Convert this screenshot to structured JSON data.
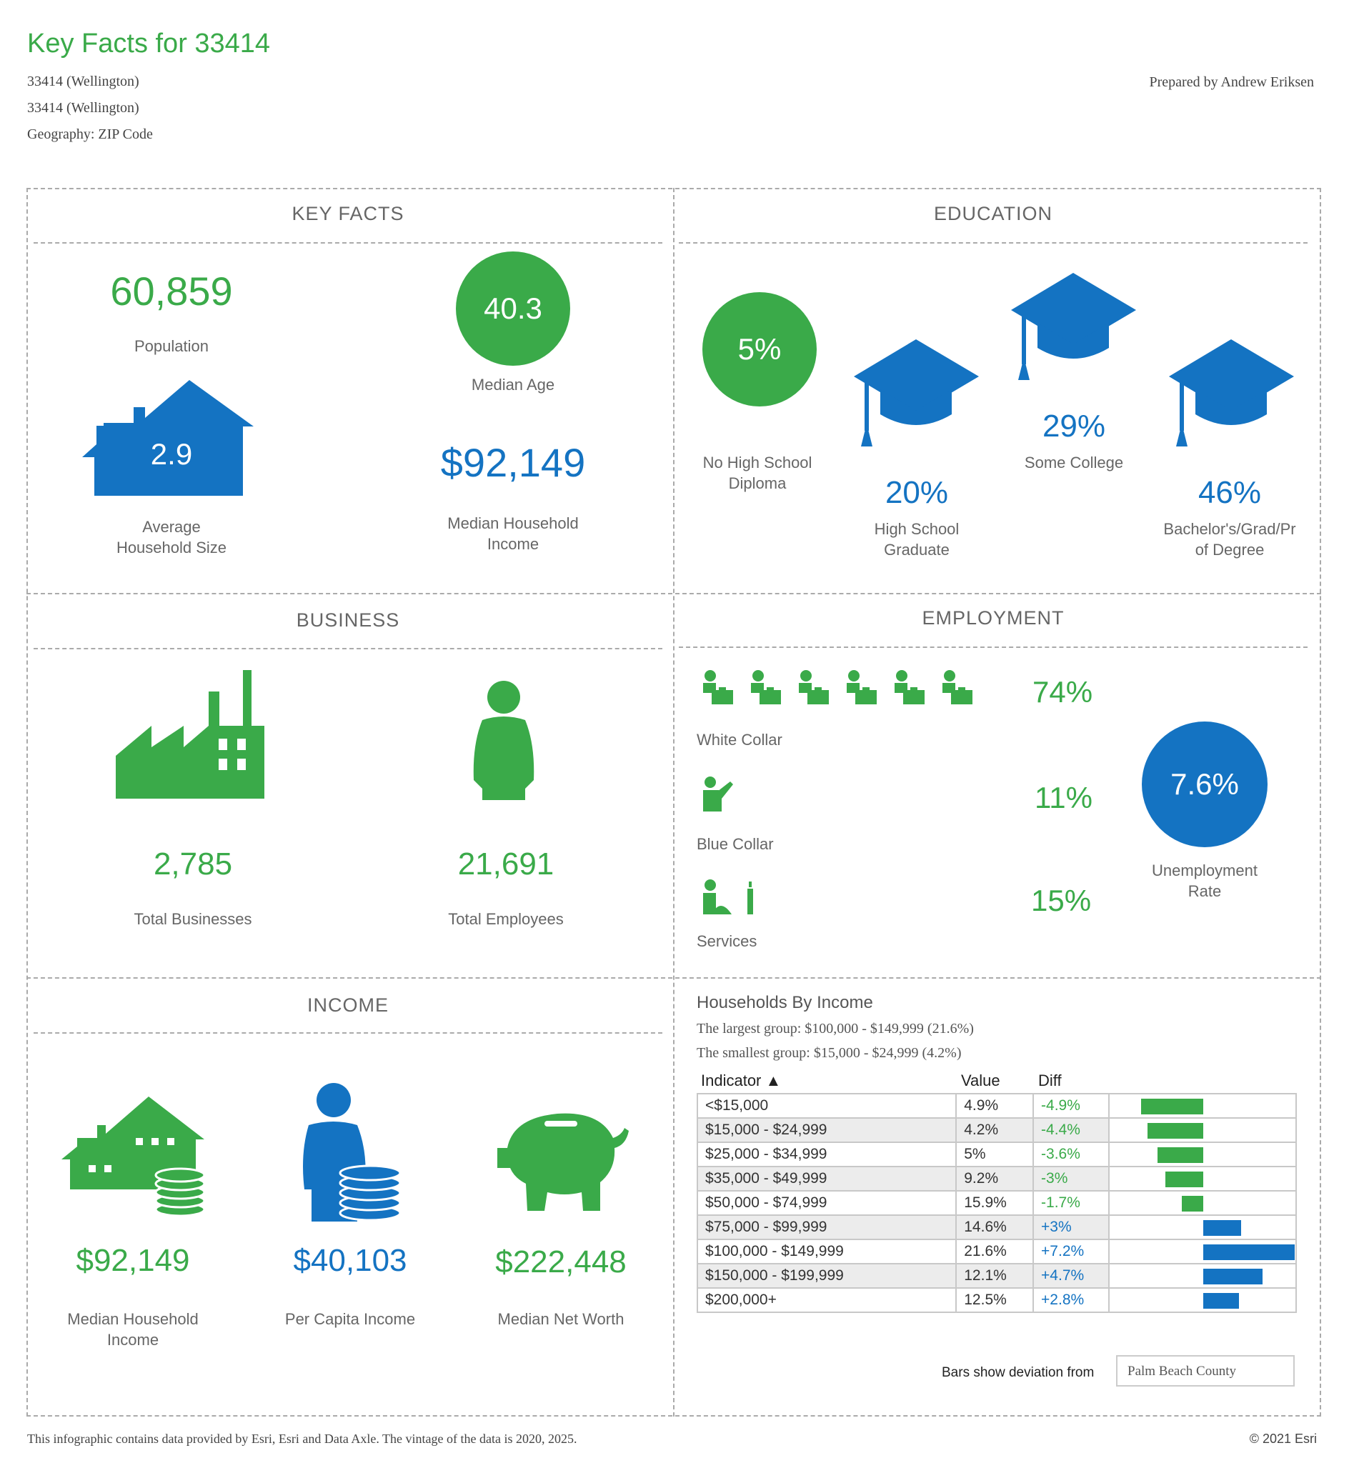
{
  "header": {
    "title": "Key Facts for 33414",
    "line1": "33414 (Wellington)",
    "line2": "33414 (Wellington)",
    "line3": "Geography: ZIP Code",
    "prepared_by": "Prepared by Andrew Eriksen"
  },
  "key_facts": {
    "title": "KEY FACTS",
    "population": "60,859",
    "population_label": "Population",
    "median_age": "40.3",
    "median_age_label": "Median Age",
    "avg_household_size": "2.9",
    "avg_household_size_label1": "Average",
    "avg_household_size_label2": "Household Size",
    "median_household_income": "$92,149",
    "median_household_income_label1": "Median Household",
    "median_household_income_label2": "Income"
  },
  "education": {
    "title": "EDUCATION",
    "no_hs_value": "5%",
    "no_hs_label1": "No High School",
    "no_hs_label2": "Diploma",
    "hs_grad_value": "20%",
    "hs_grad_label1": "High School",
    "hs_grad_label2": "Graduate",
    "some_college_value": "29%",
    "some_college_label": "Some College",
    "bachelor_value": "46%",
    "bachelor_label1": "Bachelor's/Grad/Pr",
    "bachelor_label2": "of Degree"
  },
  "business": {
    "title": "BUSINESS",
    "total_businesses": "2,785",
    "total_businesses_label": "Total Businesses",
    "total_employees": "21,691",
    "total_employees_label": "Total Employees"
  },
  "employment": {
    "title": "EMPLOYMENT",
    "white_collar_value": "74%",
    "white_collar_label": "White Collar",
    "blue_collar_value": "11%",
    "blue_collar_label": "Blue Collar",
    "services_value": "15%",
    "services_label": "Services",
    "unemployment_value": "7.6%",
    "unemployment_label1": "Unemployment",
    "unemployment_label2": "Rate"
  },
  "income": {
    "title": "INCOME",
    "median_household_income": "$92,149",
    "median_household_income_label1": "Median Household",
    "median_household_income_label2": "Income",
    "per_capita_income": "$40,103",
    "per_capita_income_label": "Per Capita Income",
    "median_net_worth": "$222,448",
    "median_net_worth_label": "Median Net Worth"
  },
  "households_by_income": {
    "title": "Households By Income",
    "largest": "The largest group: $100,000 - $149,999 (21.6%)",
    "smallest": "The smallest group: $15,000 - $24,999 (4.2%)",
    "col_indicator": "Indicator ▲",
    "col_value": "Value",
    "col_diff": "Diff",
    "rows": [
      {
        "indicator": "<$15,000",
        "value": "4.9%",
        "diff": "-4.9%",
        "d": -4.9
      },
      {
        "indicator": "$15,000 - $24,999",
        "value": "4.2%",
        "diff": "-4.4%",
        "d": -4.4
      },
      {
        "indicator": "$25,000 - $34,999",
        "value": "5%",
        "diff": "-3.6%",
        "d": -3.6
      },
      {
        "indicator": "$35,000 - $49,999",
        "value": "9.2%",
        "diff": "-3%",
        "d": -3.0
      },
      {
        "indicator": "$50,000 - $74,999",
        "value": "15.9%",
        "diff": "-1.7%",
        "d": -1.7
      },
      {
        "indicator": "$75,000 - $99,999",
        "value": "14.6%",
        "diff": "+3%",
        "d": 3.0
      },
      {
        "indicator": "$100,000 - $149,999",
        "value": "21.6%",
        "diff": "+7.2%",
        "d": 7.2
      },
      {
        "indicator": "$150,000 - $199,999",
        "value": "12.1%",
        "diff": "+4.7%",
        "d": 4.7
      },
      {
        "indicator": "$200,000+",
        "value": "12.5%",
        "diff": "+2.8%",
        "d": 2.8
      }
    ],
    "deviation_label": "Bars show deviation from",
    "deviation_select": "Palm Beach County"
  },
  "colors": {
    "green": "#3aaa49",
    "blue": "#1473c2"
  },
  "footer": {
    "note": "This infographic contains data provided by Esri, Esri and Data Axle. The vintage of the data is 2020, 2025.",
    "copyright": "© 2021 Esri"
  }
}
